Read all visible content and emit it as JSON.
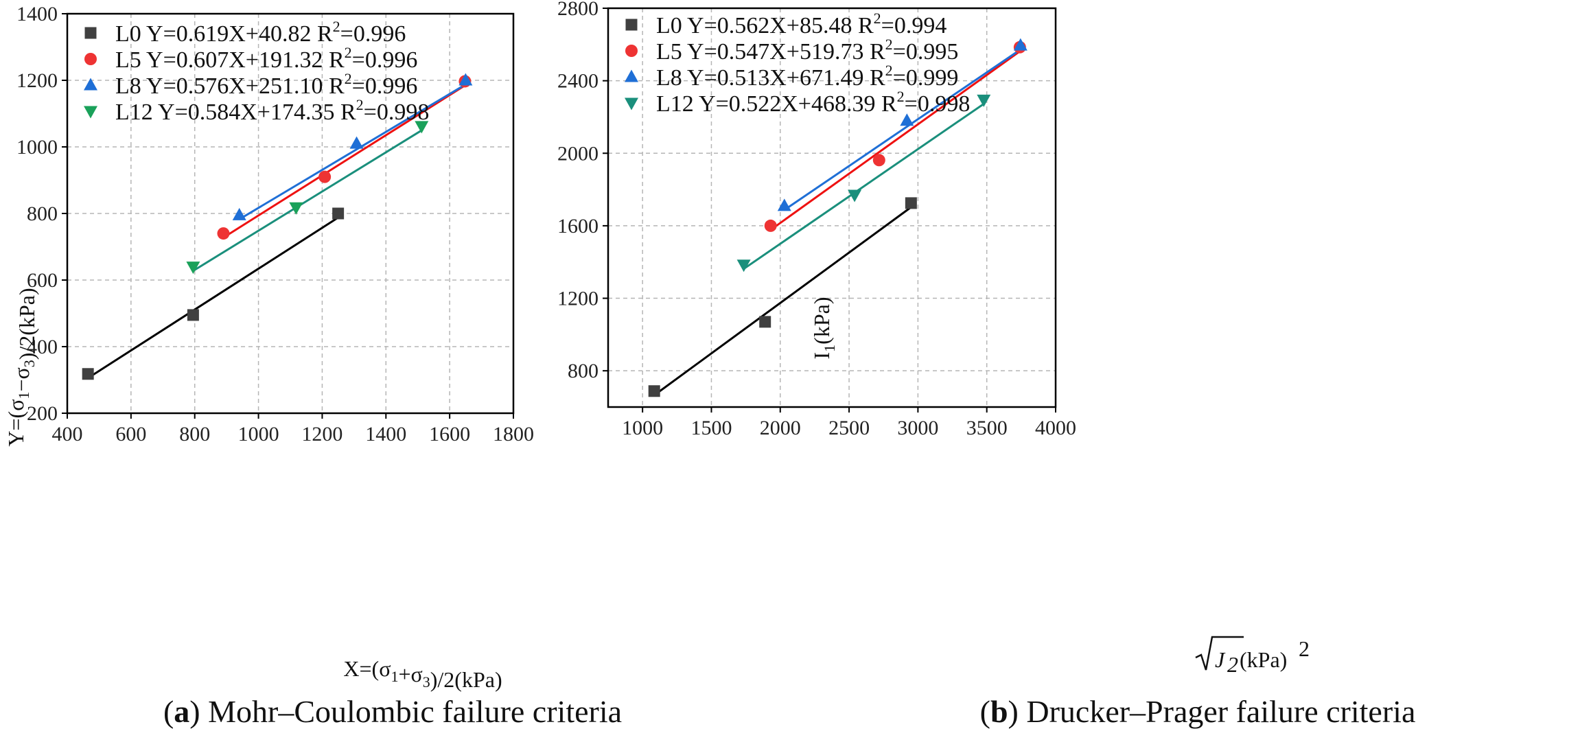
{
  "chart_data": [
    {
      "type": "scatter",
      "caption_letter": "a",
      "caption_text": " Mohr–Coulombic failure criteria",
      "xlabel": "X=(σ1+σ3)/2(kPa)",
      "ylabel": "Y=(σ1−σ3)/2(kPa)",
      "xlim": [
        400,
        1800
      ],
      "ylim": [
        200,
        1400
      ],
      "xticks": [
        400,
        600,
        800,
        1000,
        1200,
        1400,
        1600,
        1800
      ],
      "yticks": [
        200,
        400,
        600,
        800,
        1000,
        1200,
        1400
      ],
      "grid": true,
      "legend_position": "top-left",
      "series": [
        {
          "name": "L0",
          "fit_label": "Y=0.619X+40.82",
          "r2_value": "0.996",
          "marker": "square",
          "color": "#404040",
          "line_color": "#000000",
          "x": [
            465,
            795,
            1250
          ],
          "y": [
            318,
            495,
            800
          ],
          "fit_x": [
            465,
            1250
          ]
        },
        {
          "name": "L5",
          "fit_label": "Y=0.607X+191.32",
          "r2_value": "0.996",
          "marker": "circle",
          "color": "#ee3333",
          "line_color": "#ee1111",
          "x": [
            890,
            1208,
            1648
          ],
          "y": [
            740,
            910,
            1197
          ],
          "fit_x": [
            890,
            1648
          ]
        },
        {
          "name": "L8",
          "fit_label": "Y=0.576X+251.10",
          "r2_value": "0.996",
          "marker": "triangle-up",
          "color": "#1f6fd6",
          "line_color": "#1f6fd6",
          "x": [
            940,
            1308,
            1650
          ],
          "y": [
            795,
            1010,
            1200
          ],
          "fit_x": [
            940,
            1650
          ]
        },
        {
          "name": "L12",
          "fit_label": "Y=0.584X+174.35",
          "r2_value": "0.998",
          "marker": "triangle-down",
          "color": "#1aa15a",
          "line_color": "#1a8f7c",
          "x": [
            795,
            1118,
            1512
          ],
          "y": [
            640,
            818,
            1062
          ],
          "fit_x": [
            795,
            1512
          ]
        }
      ]
    },
    {
      "type": "scatter",
      "caption_letter": "b",
      "caption_text": " Drucker–Prager failure criteria",
      "xlabel_sqrt": "J",
      "xlabel_sub": "2",
      "xlabel_rest": "(kPa)",
      "xlabel_sup": "2",
      "ylabel_main": "I",
      "ylabel_sub": "1",
      "ylabel_rest": "(kPa)",
      "xlim": [
        750,
        4000
      ],
      "ylim": [
        600,
        2800
      ],
      "xticks": [
        1000,
        1500,
        2000,
        2500,
        3000,
        3500,
        4000
      ],
      "yticks": [
        800,
        1200,
        1600,
        2000,
        2400,
        2800
      ],
      "grid": true,
      "legend_position": "top-left",
      "series": [
        {
          "name": "L0",
          "fit_label": "Y=0.562X+85.48",
          "r2_value": "0.994",
          "marker": "square",
          "color": "#404040",
          "line_color": "#000000",
          "x": [
            1085,
            1890,
            2950
          ],
          "y": [
            688,
            1070,
            1725
          ],
          "fit_x": [
            1085,
            2950
          ]
        },
        {
          "name": "L5",
          "fit_label": "Y=0.547X+519.73",
          "r2_value": "0.995",
          "marker": "circle",
          "color": "#ee3333",
          "line_color": "#ee1111",
          "x": [
            1930,
            2718,
            3740
          ],
          "y": [
            1600,
            1962,
            2585
          ],
          "fit_x": [
            1930,
            3740
          ]
        },
        {
          "name": "L8",
          "fit_label": "Y=0.513X+671.49",
          "r2_value": "0.999",
          "marker": "triangle-up",
          "color": "#1f6fd6",
          "line_color": "#1f6fd6",
          "x": [
            2030,
            2920,
            3745
          ],
          "y": [
            1710,
            2180,
            2595
          ],
          "fit_x": [
            2030,
            3745
          ]
        },
        {
          "name": "L12",
          "fit_label": "Y=0.522X+468.39",
          "r2_value": "0.998",
          "marker": "triangle-down",
          "color": "#1a8f7c",
          "line_color": "#1a8f7c",
          "x": [
            1735,
            2540,
            3478
          ],
          "y": [
            1385,
            1770,
            2295
          ],
          "fit_x": [
            1735,
            3478
          ]
        }
      ]
    }
  ]
}
